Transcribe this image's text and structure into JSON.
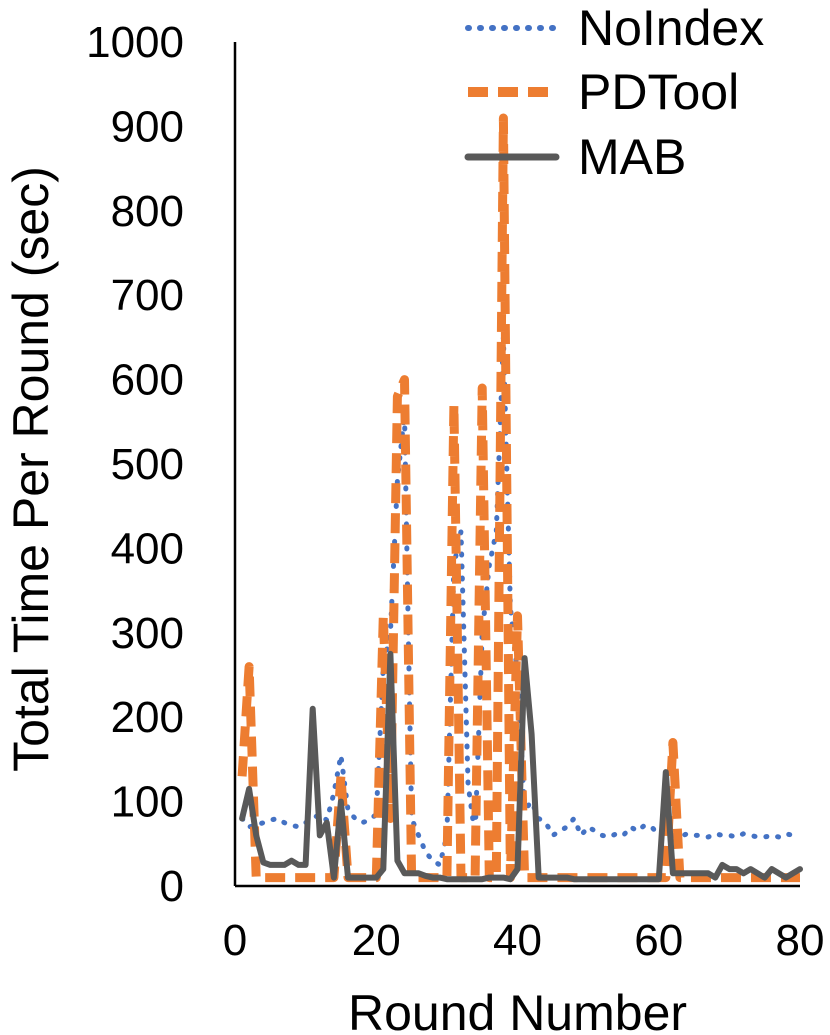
{
  "chart_data": {
    "type": "line",
    "title": "",
    "xlabel": "Round Number",
    "ylabel": "Total Time Per Round (sec)",
    "xlim": [
      0,
      80
    ],
    "ylim": [
      0,
      1000
    ],
    "x_ticks": [
      "0",
      "20",
      "40",
      "60",
      "80"
    ],
    "y_ticks": [
      "0",
      "100",
      "200",
      "300",
      "400",
      "500",
      "600",
      "700",
      "800",
      "900",
      "1000"
    ],
    "grid": false,
    "legend_position": "top-right",
    "x": [
      1,
      2,
      3,
      4,
      5,
      6,
      7,
      8,
      9,
      10,
      11,
      12,
      13,
      14,
      15,
      16,
      17,
      18,
      19,
      20,
      21,
      22,
      23,
      24,
      25,
      26,
      27,
      28,
      29,
      30,
      31,
      32,
      33,
      34,
      35,
      36,
      37,
      38,
      39,
      40,
      41,
      42,
      43,
      44,
      45,
      46,
      47,
      48,
      49,
      50,
      51,
      52,
      53,
      54,
      55,
      56,
      57,
      58,
      59,
      60,
      61,
      62,
      63,
      64,
      65,
      66,
      67,
      68,
      69,
      70,
      71,
      72,
      73,
      74,
      75,
      76,
      77,
      78,
      79,
      80
    ],
    "series": [
      {
        "name": "NoIndex",
        "color": "#4472C4",
        "style": "dotted",
        "values": [
          80,
          70,
          72,
          75,
          78,
          80,
          75,
          72,
          70,
          75,
          80,
          85,
          78,
          110,
          155,
          90,
          80,
          75,
          78,
          85,
          260,
          300,
          480,
          560,
          80,
          60,
          40,
          30,
          25,
          60,
          380,
          420,
          120,
          60,
          300,
          380,
          420,
          650,
          330,
          250,
          90,
          100,
          80,
          75,
          60,
          65,
          70,
          80,
          60,
          70,
          65,
          60,
          58,
          62,
          60,
          70,
          65,
          72,
          70,
          60,
          62,
          60,
          58,
          62,
          60,
          60,
          58,
          62,
          60,
          60,
          58,
          62,
          60,
          58,
          58,
          60,
          58,
          62,
          60,
          58
        ]
      },
      {
        "name": "PDTool",
        "color": "#ED7D31",
        "style": "dashed",
        "values": [
          130,
          260,
          10,
          10,
          10,
          10,
          10,
          10,
          10,
          10,
          10,
          10,
          10,
          10,
          130,
          10,
          10,
          10,
          10,
          10,
          320,
          80,
          580,
          600,
          10,
          10,
          10,
          10,
          10,
          10,
          570,
          10,
          10,
          10,
          590,
          10,
          10,
          910,
          10,
          320,
          10,
          10,
          10,
          10,
          10,
          10,
          10,
          10,
          10,
          10,
          10,
          10,
          10,
          10,
          10,
          10,
          10,
          10,
          10,
          10,
          10,
          170,
          10,
          10,
          10,
          10,
          10,
          10,
          10,
          10,
          10,
          10,
          10,
          10,
          10,
          10,
          10,
          10,
          10,
          10
        ]
      },
      {
        "name": "MAB",
        "color": "#595959",
        "style": "solid",
        "values": [
          80,
          115,
          60,
          28,
          25,
          25,
          25,
          30,
          25,
          25,
          210,
          60,
          75,
          10,
          100,
          10,
          10,
          10,
          10,
          10,
          20,
          275,
          30,
          15,
          15,
          15,
          12,
          10,
          10,
          8,
          8,
          8,
          8,
          8,
          8,
          10,
          10,
          10,
          8,
          20,
          270,
          180,
          10,
          10,
          10,
          10,
          10,
          8,
          8,
          8,
          8,
          8,
          8,
          8,
          8,
          8,
          8,
          8,
          8,
          8,
          135,
          15,
          15,
          15,
          15,
          15,
          15,
          10,
          25,
          20,
          20,
          15,
          20,
          15,
          10,
          20,
          15,
          10,
          15,
          20
        ]
      }
    ]
  }
}
